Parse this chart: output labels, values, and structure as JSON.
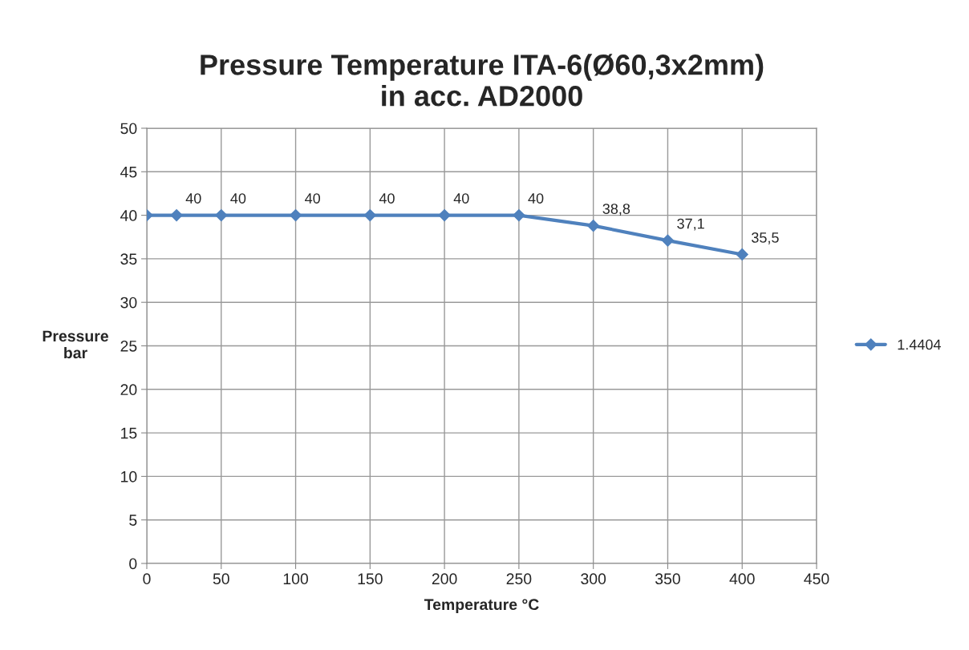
{
  "chart_data": {
    "type": "line",
    "title": "Pressure Temperature ITA-6(Ø60,3x2mm)\nin acc. AD2000",
    "xlabel": "Temperature °C",
    "ylabel": "Pressure\nbar",
    "x": [
      0,
      20,
      50,
      100,
      150,
      200,
      250,
      300,
      350,
      400
    ],
    "series": [
      {
        "name": "1.4404",
        "color": "#4f81bd",
        "values": [
          40,
          40,
          40,
          40,
          40,
          40,
          40,
          38.8,
          37.1,
          35.5
        ],
        "value_labels": [
          null,
          "40",
          "40",
          "40",
          "40",
          "40",
          "40",
          "38,8",
          "37,1",
          "35,5"
        ]
      }
    ],
    "xlim": [
      0,
      450
    ],
    "xticks": [
      0,
      50,
      100,
      150,
      200,
      250,
      300,
      350,
      400,
      450
    ],
    "ylim": [
      0,
      50
    ],
    "yticks": [
      0,
      5,
      10,
      15,
      20,
      25,
      30,
      35,
      40,
      45,
      50
    ],
    "grid": true,
    "legend": "right",
    "marker": "diamond",
    "line_style": "solid"
  }
}
